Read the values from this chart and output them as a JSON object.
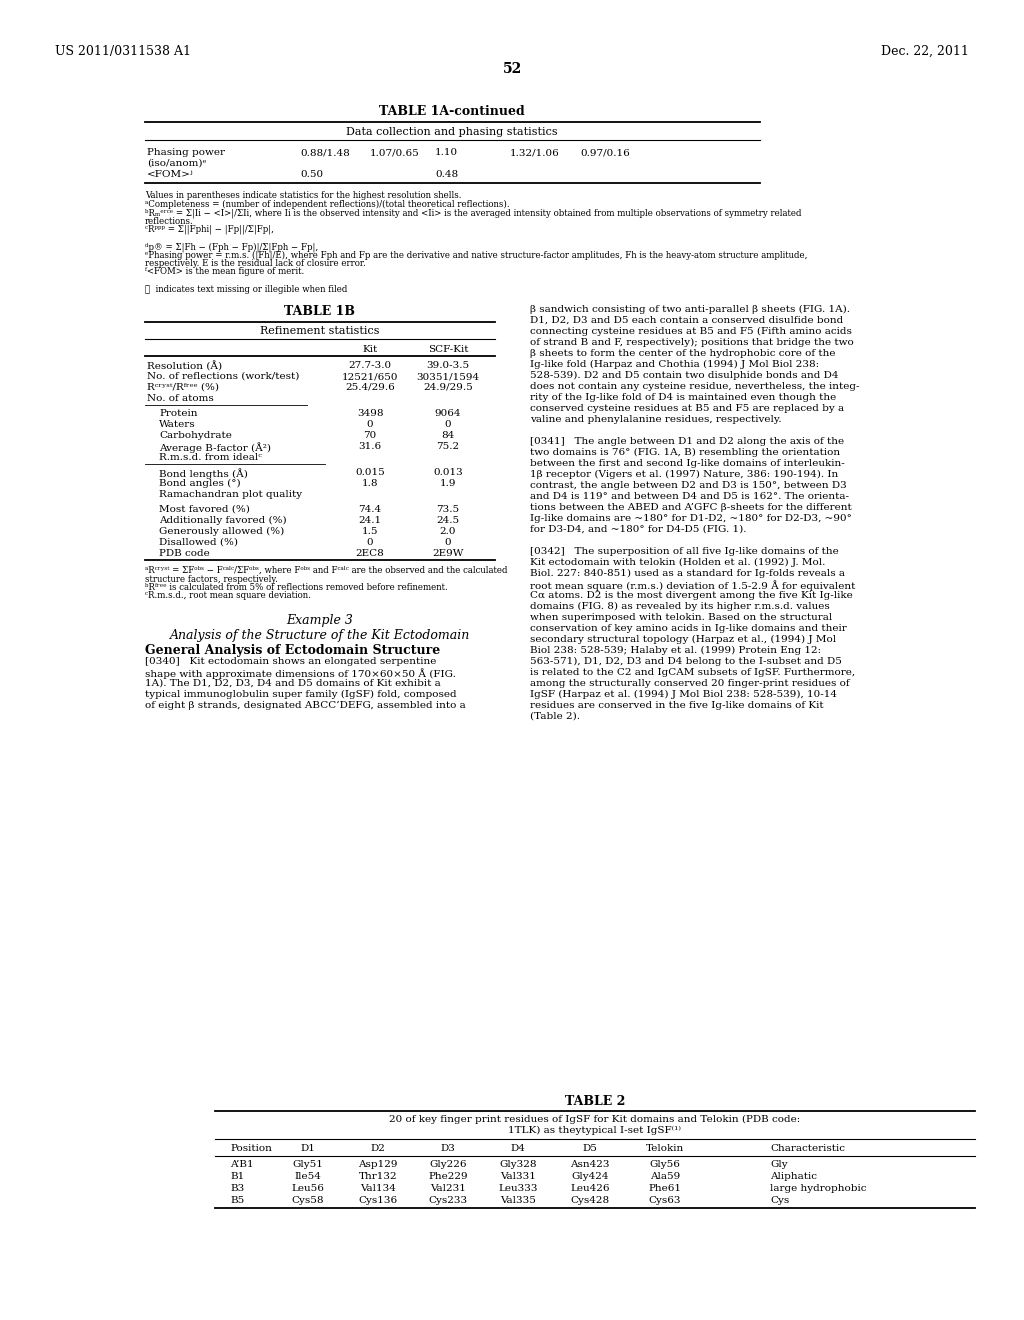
{
  "header_left": "US 2011/0311538 A1",
  "header_right": "Dec. 22, 2011",
  "page_number": "52",
  "bg": "#ffffff"
}
